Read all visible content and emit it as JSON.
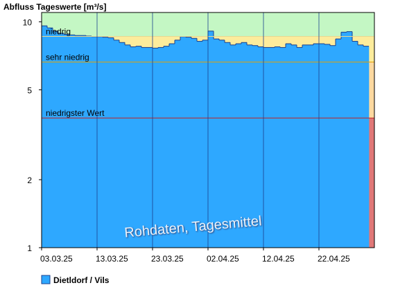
{
  "chart_data": {
    "type": "bar",
    "title": "Abfluss Tageswerte [m³/s]",
    "values": [
      9.6,
      9.4,
      9.1,
      8.9,
      8.8,
      8.75,
      8.7,
      8.7,
      8.65,
      8.6,
      8.6,
      8.55,
      8.5,
      8.3,
      8.1,
      7.9,
      7.75,
      7.8,
      7.7,
      7.7,
      7.65,
      7.7,
      7.8,
      8.0,
      8.3,
      8.6,
      8.55,
      8.45,
      8.2,
      8.3,
      9.1,
      8.4,
      8.3,
      8.1,
      7.9,
      8.0,
      8.1,
      7.9,
      7.85,
      7.75,
      7.7,
      7.7,
      7.75,
      7.7,
      8.0,
      7.9,
      7.7,
      7.9,
      7.9,
      8.0,
      8.0,
      7.95,
      7.85,
      8.4,
      9.0,
      9.05,
      8.2,
      7.9,
      7.8
    ],
    "series_name": "Dietldorf / Vils",
    "color": "#2ea8ff",
    "edge_color": "#1a3f8c",
    "log_scale": true,
    "ylim": [
      1,
      11
    ],
    "yticks": [
      1,
      2,
      5,
      10
    ],
    "xlim": [
      0,
      60
    ],
    "xticks": [
      {
        "value": 0,
        "label": "03.03.25"
      },
      {
        "value": 10,
        "label": "13.03.25"
      },
      {
        "value": 20,
        "label": "23.03.25"
      },
      {
        "value": 30,
        "label": "02.04.25"
      },
      {
        "value": 40,
        "label": "12.04.25"
      },
      {
        "value": 50,
        "label": "22.04.25"
      }
    ],
    "thresholds": [
      {
        "label": "niedrig",
        "value": 8.62,
        "band_color": "#c4f7c4",
        "line_color": "#e8d890"
      },
      {
        "label": "sehr niedrig",
        "value": 6.64,
        "band_color": "#fdec9c",
        "line_color": "#e0a000"
      },
      {
        "label": "niedrigster Wert",
        "value": 3.75,
        "band_color": "#fdd9a0",
        "line_color": "#c02020"
      }
    ],
    "bottom_band_color": "#e07878",
    "annotation": "Rohdaten, Tagesmittel"
  }
}
